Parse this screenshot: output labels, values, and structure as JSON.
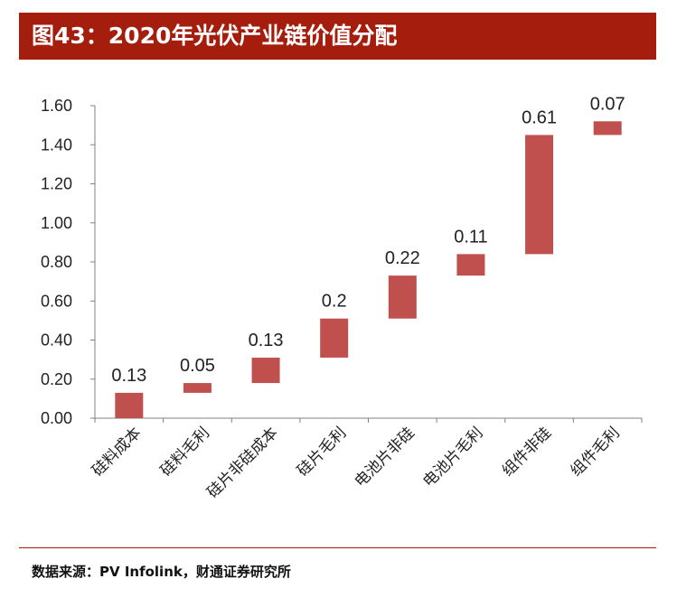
{
  "header": {
    "title": "图43：2020年光伏产业链价值分配"
  },
  "chart_data": {
    "type": "bar",
    "subtype": "waterfall",
    "categories": [
      "硅料成本",
      "硅料毛利",
      "硅片非硅成本",
      "硅片毛利",
      "电池片非硅",
      "电池片毛利",
      "组件非硅",
      "组件毛利"
    ],
    "values": [
      0.13,
      0.05,
      0.13,
      0.2,
      0.22,
      0.11,
      0.61,
      0.07
    ],
    "labels": [
      "0.13",
      "0.05",
      "0.13",
      "0.2",
      "0.22",
      "0.11",
      "0.61",
      "0.07"
    ],
    "bases": [
      0.0,
      0.13,
      0.18,
      0.31,
      0.51,
      0.73,
      0.84,
      1.45
    ],
    "ylim": [
      0,
      1.6
    ],
    "yticks": [
      "0.00",
      "0.20",
      "0.40",
      "0.60",
      "0.80",
      "1.00",
      "1.20",
      "1.40",
      "1.60"
    ],
    "grid": false,
    "bar_color": "#c0504d"
  },
  "footer": {
    "source": "数据来源：PV Infolink，财通证券研究所"
  },
  "colors": {
    "accent": "#a51d0d",
    "bar": "#c0504d"
  }
}
